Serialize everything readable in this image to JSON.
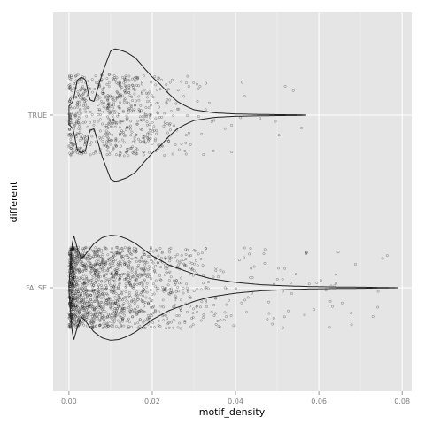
{
  "chart_data": {
    "type": "violin",
    "xlabel": "motif_density",
    "ylabel": "different",
    "xlim": [
      -0.0038,
      0.0823
    ],
    "x_ticks": [
      0.0,
      0.02,
      0.04,
      0.06,
      0.08
    ],
    "x_tick_labels": [
      "0.00",
      "0.02",
      "0.04",
      "0.06",
      "0.08"
    ],
    "categories": [
      "TRUE",
      "FALSE"
    ],
    "grid": true,
    "jittered_points": true,
    "violins": [
      {
        "category": "TRUE",
        "max": 0.057,
        "n_points_approx": 700,
        "density_profile": [
          [
            0.0,
            0.12
          ],
          [
            0.001,
            0.18
          ],
          [
            0.002,
            0.46
          ],
          [
            0.003,
            0.5
          ],
          [
            0.004,
            0.46
          ],
          [
            0.005,
            0.2
          ],
          [
            0.006,
            0.18
          ],
          [
            0.008,
            0.55
          ],
          [
            0.01,
            0.84
          ],
          [
            0.011,
            0.87
          ],
          [
            0.012,
            0.86
          ],
          [
            0.014,
            0.82
          ],
          [
            0.016,
            0.75
          ],
          [
            0.018,
            0.62
          ],
          [
            0.02,
            0.5
          ],
          [
            0.022,
            0.4
          ],
          [
            0.024,
            0.28
          ],
          [
            0.026,
            0.18
          ],
          [
            0.028,
            0.12
          ],
          [
            0.03,
            0.07
          ],
          [
            0.035,
            0.03
          ],
          [
            0.04,
            0.015
          ],
          [
            0.045,
            0.01
          ],
          [
            0.05,
            0.006
          ],
          [
            0.055,
            0.004
          ],
          [
            0.057,
            0.0
          ]
        ]
      },
      {
        "category": "FALSE",
        "max": 0.079,
        "n_points_approx": 1600,
        "density_profile": [
          [
            0.0,
            0.05
          ],
          [
            0.001,
            0.72
          ],
          [
            0.002,
            0.52
          ],
          [
            0.003,
            0.38
          ],
          [
            0.004,
            0.44
          ],
          [
            0.006,
            0.58
          ],
          [
            0.008,
            0.66
          ],
          [
            0.01,
            0.69
          ],
          [
            0.012,
            0.68
          ],
          [
            0.014,
            0.64
          ],
          [
            0.016,
            0.58
          ],
          [
            0.018,
            0.5
          ],
          [
            0.02,
            0.42
          ],
          [
            0.022,
            0.36
          ],
          [
            0.024,
            0.3
          ],
          [
            0.026,
            0.26
          ],
          [
            0.028,
            0.22
          ],
          [
            0.03,
            0.18
          ],
          [
            0.034,
            0.12
          ],
          [
            0.04,
            0.07
          ],
          [
            0.046,
            0.04
          ],
          [
            0.052,
            0.025
          ],
          [
            0.058,
            0.015
          ],
          [
            0.064,
            0.01
          ],
          [
            0.072,
            0.006
          ],
          [
            0.079,
            0.0
          ]
        ]
      }
    ]
  }
}
